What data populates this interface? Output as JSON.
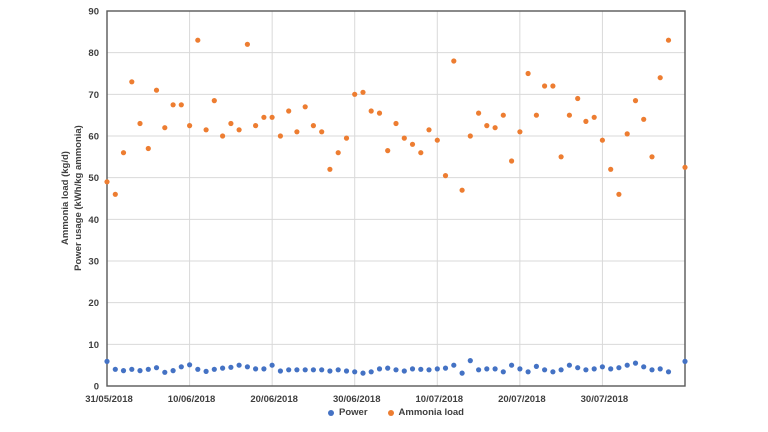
{
  "chart_data": {
    "type": "scatter",
    "title": "",
    "xlabel": "",
    "ylabel_lines": [
      "Ammonia load (kg/d)",
      "Power usage (kWh/kg ammonia)"
    ],
    "ylim": [
      0,
      90
    ],
    "yticks": [
      0,
      10,
      20,
      30,
      40,
      50,
      60,
      70,
      80,
      90
    ],
    "xlim_days": [
      0,
      70
    ],
    "xtick_days": [
      0,
      10,
      20,
      30,
      40,
      50,
      60
    ],
    "xtick_labels": [
      "31/05/2018",
      "10/06/2018",
      "20/06/2018",
      "30/06/2018",
      "10/07/2018",
      "20/07/2018",
      "30/07/2018"
    ],
    "grid": true,
    "legend_position": "bottom-center",
    "marker_radius": 2.6,
    "x_days": [
      0,
      1,
      2,
      3,
      4,
      5,
      6,
      7,
      8,
      9,
      10,
      11,
      12,
      13,
      14,
      15,
      16,
      17,
      18,
      19,
      20,
      21,
      22,
      23,
      24,
      25,
      26,
      27,
      28,
      29,
      30,
      31,
      32,
      33,
      34,
      35,
      36,
      37,
      38,
      39,
      40,
      41,
      42,
      43,
      44,
      45,
      46,
      47,
      48,
      49,
      50,
      51,
      52,
      53,
      54,
      55,
      56,
      57,
      58,
      59,
      60,
      61,
      62,
      63,
      64,
      65,
      66,
      67,
      68,
      70
    ],
    "series": [
      {
        "name": "Power",
        "color": "#4472C4",
        "values": [
          5.9,
          4.0,
          3.7,
          4.0,
          3.7,
          4.0,
          4.4,
          3.3,
          3.7,
          4.6,
          5.1,
          4.0,
          3.5,
          4.0,
          4.3,
          4.5,
          5.0,
          4.6,
          4.1,
          4.1,
          5.0,
          3.6,
          3.9,
          3.9,
          3.9,
          3.9,
          3.9,
          3.6,
          3.9,
          3.6,
          3.4,
          3.1,
          3.4,
          4.1,
          4.3,
          3.9,
          3.6,
          4.1,
          4.0,
          3.9,
          4.1,
          4.3,
          5.0,
          3.1,
          6.1,
          3.9,
          4.1,
          4.1,
          3.4,
          5.0,
          4.1,
          3.4,
          4.7,
          3.9,
          3.4,
          3.9,
          5.0,
          4.4,
          3.9,
          4.1,
          4.6,
          4.1,
          4.4,
          5.0,
          5.5,
          4.6,
          3.9,
          4.1,
          3.4,
          5.9
        ]
      },
      {
        "name": "Ammonia load",
        "color": "#ED7D31",
        "values": [
          49,
          46,
          56,
          73,
          63,
          57,
          71,
          62,
          67.5,
          67.5,
          62.5,
          83,
          61.5,
          68.5,
          60,
          63,
          61.5,
          82,
          62.5,
          64.5,
          64.5,
          60,
          66,
          61,
          67,
          62.5,
          61,
          52,
          56,
          59.5,
          70,
          70.5,
          66,
          65.5,
          56.5,
          63,
          59.5,
          58,
          56,
          61.5,
          59,
          50.5,
          78,
          47,
          60,
          65.5,
          62.5,
          62,
          65,
          54,
          61,
          75,
          65,
          72,
          72,
          55,
          65,
          69,
          63.5,
          64.5,
          59,
          52,
          46,
          60.5,
          68.5,
          64,
          55,
          74,
          83,
          52.5
        ]
      }
    ]
  },
  "colors": {
    "power_blue": "#4472C4",
    "ammonia_orange": "#ED7D31",
    "gridline": "#D9D9D9",
    "axis_border": "#595959",
    "axis_text": "#3f3f3f"
  }
}
